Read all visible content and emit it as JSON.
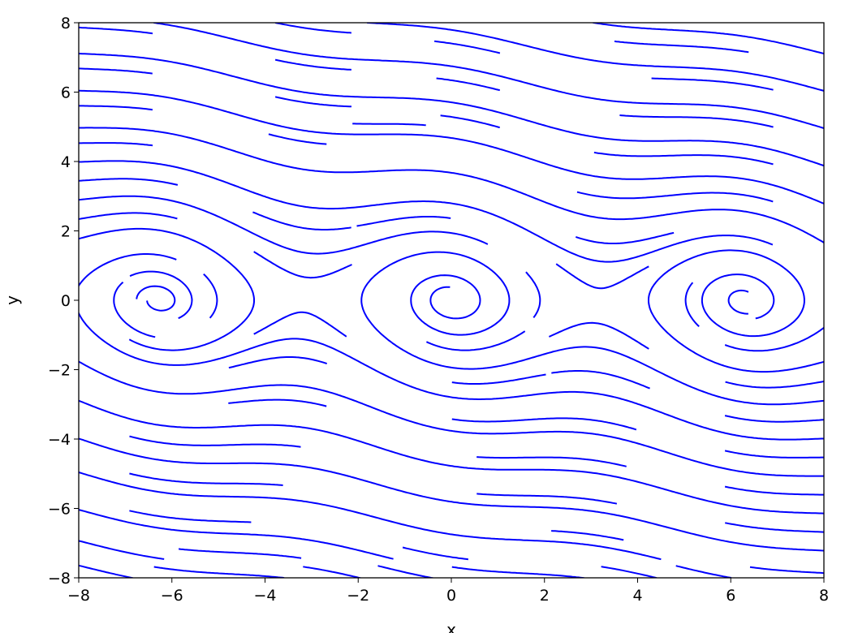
{
  "chart_data": {
    "type": "streamplot",
    "title": "",
    "xlabel": "x",
    "ylabel": "y",
    "xlim": [
      -8,
      8
    ],
    "ylim": [
      -8,
      8
    ],
    "xticks": [
      -8,
      -6,
      -4,
      -2,
      0,
      2,
      4,
      6,
      8
    ],
    "yticks": [
      -8,
      -6,
      -4,
      -2,
      0,
      2,
      4,
      6,
      8
    ],
    "xtick_labels": [
      "−8",
      "−6",
      "−4",
      "−2",
      "0",
      "2",
      "4",
      "6",
      "8"
    ],
    "ytick_labels": [
      "−8",
      "−6",
      "−4",
      "−2",
      "0",
      "2",
      "4",
      "6",
      "8"
    ],
    "field": {
      "u": "y",
      "v": "-sin(x) - 0.2*y",
      "damping": 0.2
    },
    "density_grid": 30,
    "line_color": "#0000ff",
    "grid": false,
    "arrows": false
  }
}
